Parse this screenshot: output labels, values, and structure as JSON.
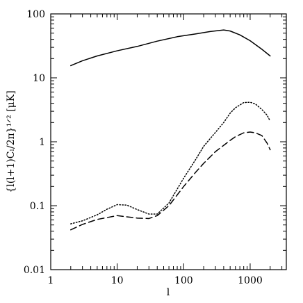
{
  "chart_data": {
    "type": "line",
    "xlabel": "l",
    "ylabel": "{l(l+1)Cₗ/2π}¹ᐟ² [μK]",
    "xscale": "log",
    "yscale": "log",
    "xlim": [
      1,
      3500
    ],
    "ylim": [
      0.01,
      100
    ],
    "xticks": [
      1,
      10,
      100,
      1000
    ],
    "xtick_labels": [
      "1",
      "10",
      "100",
      "1000"
    ],
    "yticks": [
      0.01,
      0.1,
      1,
      10,
      100
    ],
    "ytick_labels": [
      "0.01",
      "0.1",
      "1",
      "10",
      "100"
    ],
    "grid": false,
    "series": [
      {
        "style": "solid",
        "x": [
          2,
          3,
          5,
          10,
          20,
          40,
          80,
          150,
          250,
          400,
          500,
          700,
          1000,
          1500,
          2000
        ],
        "y": [
          15.5,
          18.5,
          22,
          26.5,
          31,
          37.5,
          44,
          48.5,
          53,
          56,
          54,
          47,
          38,
          28,
          22
        ]
      },
      {
        "style": "dotted",
        "x": [
          2,
          3,
          5,
          7,
          10,
          14,
          20,
          30,
          40,
          60,
          100,
          150,
          200,
          300,
          400,
          500,
          600,
          800,
          1000,
          1200,
          1500,
          1800,
          2000
        ],
        "y": [
          0.052,
          0.058,
          0.072,
          0.088,
          0.104,
          0.102,
          0.087,
          0.074,
          0.074,
          0.11,
          0.27,
          0.52,
          0.85,
          1.4,
          2.0,
          2.8,
          3.4,
          4.1,
          4.15,
          3.9,
          3.2,
          2.6,
          2.1
        ]
      },
      {
        "style": "dashed",
        "x": [
          2,
          3,
          5,
          10,
          20,
          30,
          40,
          60,
          100,
          150,
          200,
          300,
          400,
          500,
          600,
          800,
          1000,
          1200,
          1500,
          1800,
          2000
        ],
        "y": [
          0.042,
          0.051,
          0.061,
          0.07,
          0.064,
          0.063,
          0.07,
          0.1,
          0.2,
          0.33,
          0.46,
          0.7,
          0.88,
          1.05,
          1.2,
          1.38,
          1.42,
          1.38,
          1.25,
          0.95,
          0.75
        ]
      }
    ]
  }
}
